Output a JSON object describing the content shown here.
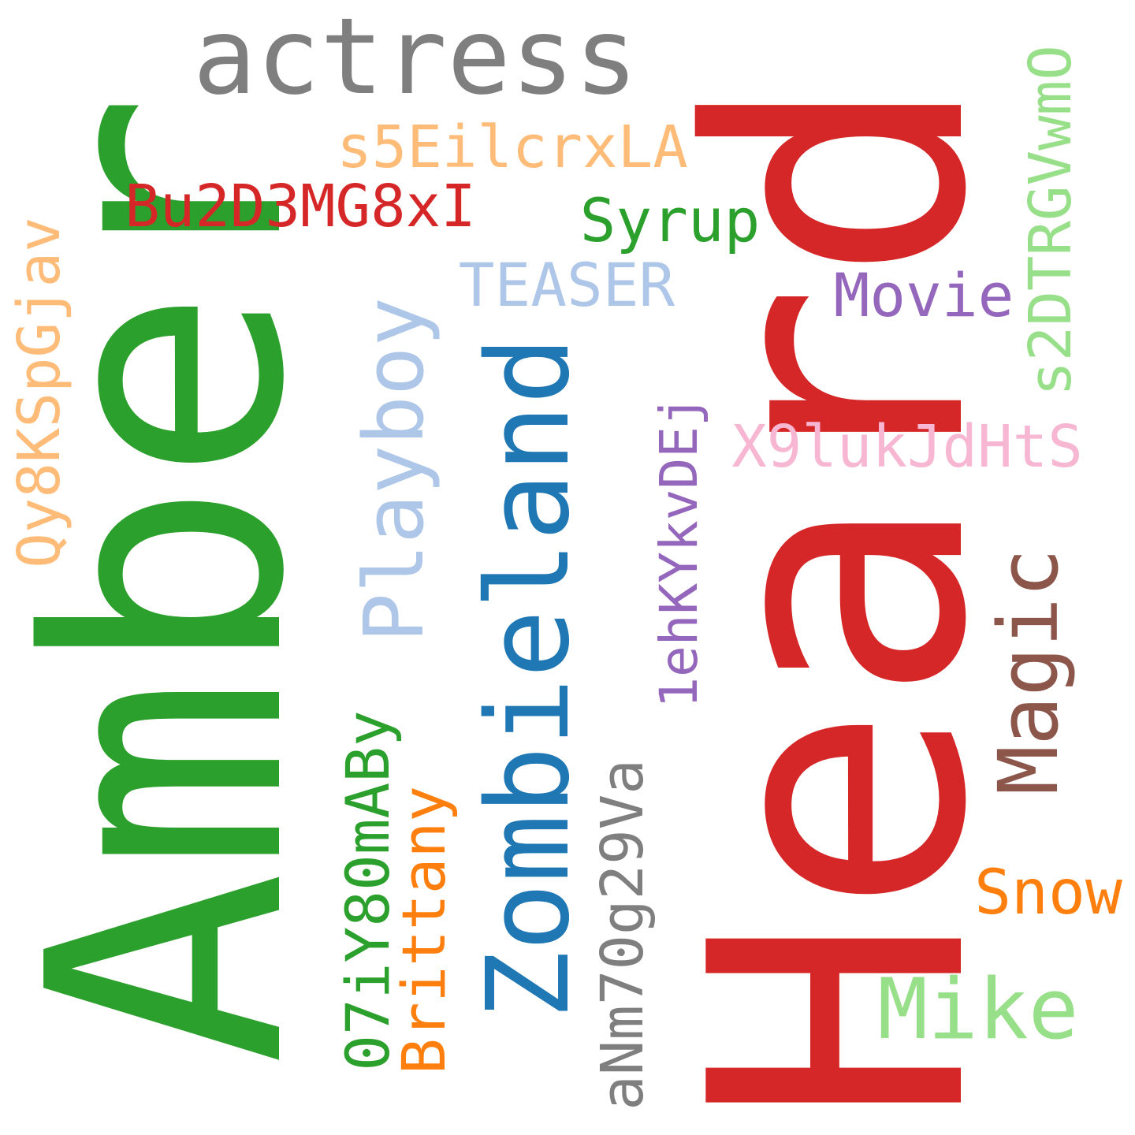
{
  "words": [
    {
      "text": "Amber",
      "color": "#2ca02c",
      "orientation": "vertical"
    },
    {
      "text": "Heard",
      "color": "#d62728",
      "orientation": "vertical"
    },
    {
      "text": "actress",
      "color": "#7f7f7f",
      "orientation": "horizontal"
    },
    {
      "text": "Zombieland",
      "color": "#1f77b4",
      "orientation": "vertical"
    },
    {
      "text": "Playboy",
      "color": "#aec7e8",
      "orientation": "vertical"
    },
    {
      "text": "Magic",
      "color": "#8c564b",
      "orientation": "vertical"
    },
    {
      "text": "Mike",
      "color": "#98df8a",
      "orientation": "horizontal"
    },
    {
      "text": "s5EilcrxLA",
      "color": "#ffbb78",
      "orientation": "horizontal"
    },
    {
      "text": "Bu2D3MG8xI",
      "color": "#d62728",
      "orientation": "horizontal"
    },
    {
      "text": "Syrup",
      "color": "#2ca02c",
      "orientation": "horizontal"
    },
    {
      "text": "TEASER",
      "color": "#aec7e8",
      "orientation": "horizontal"
    },
    {
      "text": "Movie",
      "color": "#9467bd",
      "orientation": "horizontal"
    },
    {
      "text": "X9lukJdHtS",
      "color": "#f7b6d2",
      "orientation": "horizontal"
    },
    {
      "text": "Snow",
      "color": "#ff7f0e",
      "orientation": "horizontal"
    },
    {
      "text": "Qy8KSpGjav",
      "color": "#ffbb78",
      "orientation": "vertical"
    },
    {
      "text": "1ehKYkvDEj",
      "color": "#9467bd",
      "orientation": "vertical"
    },
    {
      "text": "s2DTRGVwmO",
      "color": "#98df8a",
      "orientation": "vertical"
    },
    {
      "text": "07iY80mABy",
      "color": "#2ca02c",
      "orientation": "vertical"
    },
    {
      "text": "Brittany",
      "color": "#ff7f0e",
      "orientation": "vertical"
    },
    {
      "text": "aNm70g29Va",
      "color": "#7f7f7f",
      "orientation": "vertical"
    }
  ]
}
